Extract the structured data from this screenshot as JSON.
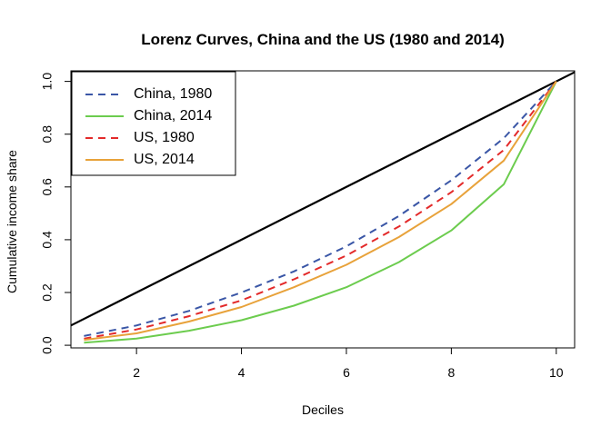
{
  "chart_data": {
    "type": "line",
    "title": "Lorenz Curves, China and the US (1980 and 2014)",
    "xlabel": "Deciles",
    "ylabel": "Cumulative income share",
    "xlim": [
      0.75,
      10.35
    ],
    "ylim": [
      -0.01,
      1.04
    ],
    "x_ticks": [
      2,
      4,
      6,
      8,
      10
    ],
    "x_tick_labels": [
      "2",
      "4",
      "6",
      "8",
      "10"
    ],
    "y_ticks": [
      0.0,
      0.2,
      0.4,
      0.6,
      0.8,
      1.0
    ],
    "y_tick_labels": [
      "0.0",
      "0.2",
      "0.4",
      "0.6",
      "0.8",
      "1.0"
    ],
    "grid": false,
    "legend_position": "top-left",
    "x": [
      1,
      2,
      3,
      4,
      5,
      6,
      7,
      8,
      9,
      10
    ],
    "equality_line": {
      "x": [
        0,
        11
      ],
      "y": [
        0,
        1.1
      ],
      "color": "#000000"
    },
    "series": [
      {
        "name": "China, 1980",
        "color": "#3a56a6",
        "dash": "dashed",
        "values": [
          0.035,
          0.075,
          0.13,
          0.2,
          0.28,
          0.375,
          0.49,
          0.625,
          0.785,
          1.0
        ]
      },
      {
        "name": "China, 2014",
        "color": "#6ccc4e",
        "dash": "solid",
        "values": [
          0.01,
          0.025,
          0.055,
          0.095,
          0.15,
          0.22,
          0.315,
          0.435,
          0.61,
          1.0
        ]
      },
      {
        "name": "US, 1980",
        "color": "#e32a2a",
        "dash": "dashed",
        "values": [
          0.025,
          0.06,
          0.11,
          0.17,
          0.25,
          0.34,
          0.45,
          0.58,
          0.74,
          1.0
        ]
      },
      {
        "name": "US, 2014",
        "color": "#e8a23a",
        "dash": "solid",
        "values": [
          0.02,
          0.045,
          0.09,
          0.145,
          0.22,
          0.305,
          0.41,
          0.535,
          0.7,
          1.0
        ]
      }
    ]
  }
}
